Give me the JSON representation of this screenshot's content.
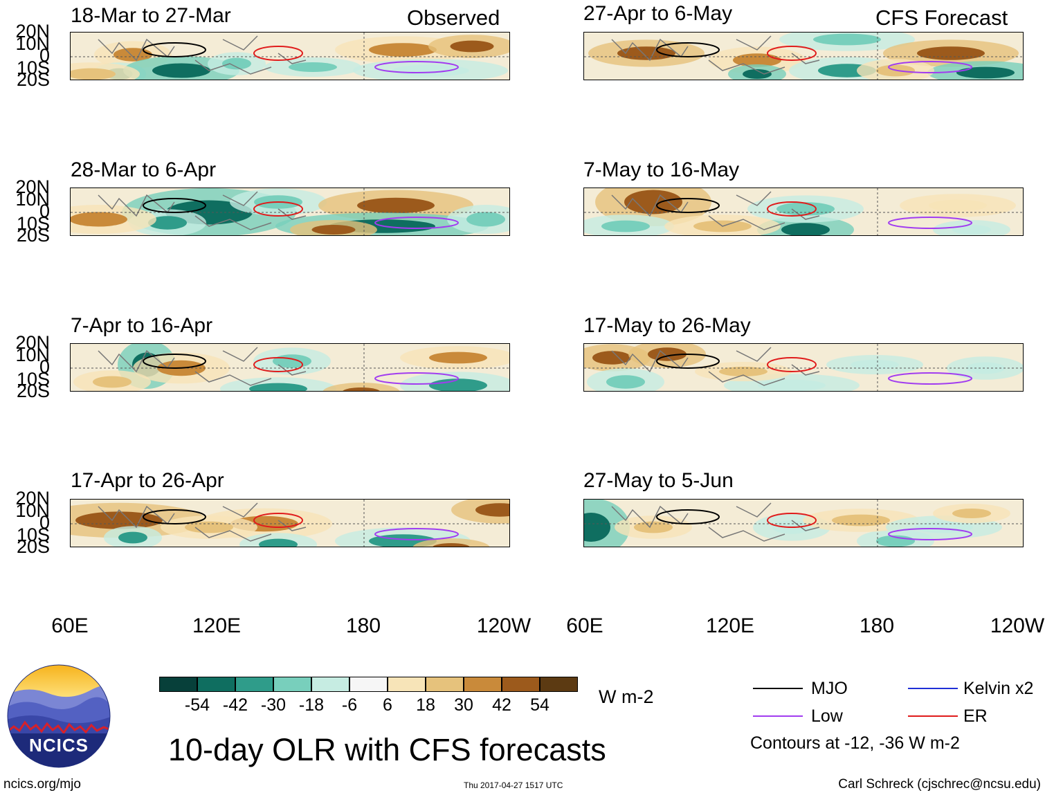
{
  "header": {
    "observed_label": "Observed",
    "forecast_label": "CFS Forecast"
  },
  "panels": {
    "observed": [
      {
        "title": "18-Mar to 27-Mar"
      },
      {
        "title": "28-Mar to 6-Apr"
      },
      {
        "title": "7-Apr to 16-Apr"
      },
      {
        "title": "17-Apr to 26-Apr"
      }
    ],
    "forecast": [
      {
        "title": "27-Apr to 6-May"
      },
      {
        "title": "7-May to 16-May"
      },
      {
        "title": "17-May to 26-May"
      },
      {
        "title": "27-May to 5-Jun"
      }
    ]
  },
  "lat_labels": [
    "20N",
    "10N",
    "0",
    "10S",
    "20S"
  ],
  "lon_labels": [
    "60E",
    "120E",
    "180",
    "120W"
  ],
  "colorbar": {
    "ticks": [
      "-54",
      "-42",
      "-30",
      "-18",
      "-6",
      "6",
      "18",
      "30",
      "42",
      "54"
    ],
    "colors": [
      "#07403a",
      "#0f6e60",
      "#2f9c8a",
      "#78cfbc",
      "#c6ece2",
      "#f6f6f6",
      "#f7e4b8",
      "#e6c27c",
      "#c98a3a",
      "#9c5a1c",
      "#5c3a12"
    ],
    "units": "W m-2"
  },
  "legend": {
    "mjo": "MJO",
    "kelvin": "Kelvin x2",
    "low": "Low",
    "er": "ER",
    "contours_note": "Contours at -12, -36 W m-2",
    "colors": {
      "mjo": "#000000",
      "kelvin": "#1f2fd6",
      "low": "#a13cf0",
      "er": "#e01b1b"
    }
  },
  "main_title": "10-day OLR with CFS forecasts",
  "logo": {
    "text": "NCICS"
  },
  "footer": {
    "url": "ncics.org/mjo",
    "timestamp": "Thu 2017-04-27 1517 UTC",
    "credit": "Carl Schreck (cjschrec@ncsu.edu)"
  }
}
